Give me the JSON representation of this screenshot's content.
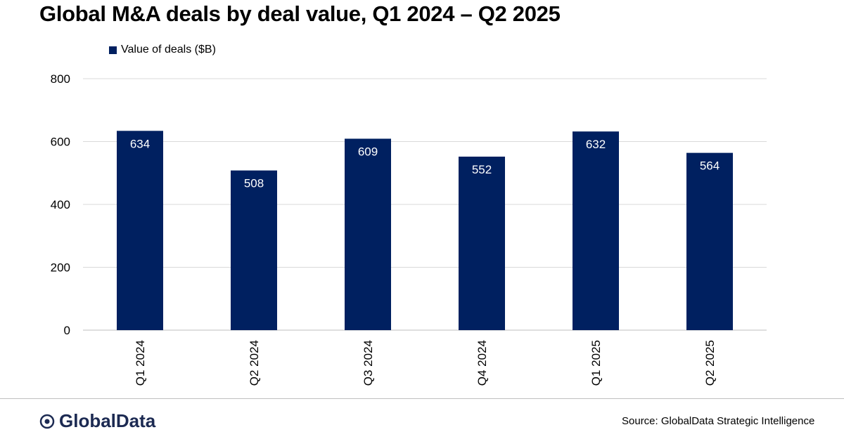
{
  "chart_data": {
    "type": "bar",
    "title": "Global M&A deals by deal value, Q1 2024 – Q2 2025",
    "categories": [
      "Q1 2024",
      "Q2 2024",
      "Q3 2024",
      "Q4 2024",
      "Q1 2025",
      "Q2 2025"
    ],
    "series": [
      {
        "name": "Value of deals ($B)",
        "values": [
          634,
          508,
          609,
          552,
          632,
          564
        ]
      }
    ],
    "ylim": [
      0,
      800
    ],
    "yticks": [
      0,
      200,
      400,
      600,
      800
    ],
    "grid": true,
    "legend": "top-left",
    "data_labels": true,
    "color": "#002060",
    "label_color": "#ffffff"
  },
  "footer": {
    "logo_text": "GlobalData",
    "source": "Source: GlobalData Strategic Intelligence"
  }
}
